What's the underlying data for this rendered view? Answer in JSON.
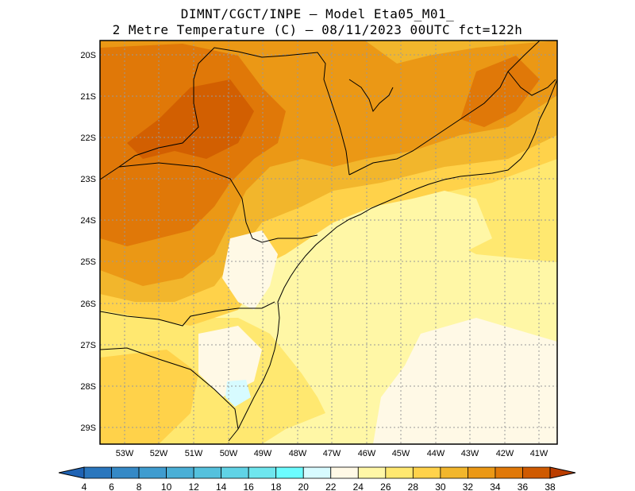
{
  "title_line1": "DIMNT/CGCT/INPE –  Model Eta05_M01_",
  "title_line2": "2 Metre Temperature (C) –  08/11/2023 00UTC fct=122h",
  "lat_labels": [
    "20S",
    "21S",
    "22S",
    "23S",
    "24S",
    "25S",
    "26S",
    "27S",
    "28S",
    "29S"
  ],
  "lon_labels": [
    "53W",
    "52W",
    "51W",
    "50W",
    "49W",
    "48W",
    "47W",
    "46W",
    "45W",
    "44W",
    "43W",
    "42W",
    "41W"
  ],
  "colorbar": {
    "labels": [
      "4",
      "6",
      "8",
      "10",
      "12",
      "14",
      "16",
      "18",
      "20",
      "22",
      "24",
      "26",
      "28",
      "30",
      "32",
      "34",
      "36",
      "38"
    ],
    "colors": [
      "#1f63b4",
      "#2a76bd",
      "#3589c6",
      "#3f9ccf",
      "#4aafd6",
      "#55c1dd",
      "#60d3e6",
      "#6ee6ee",
      "#6cfcff",
      "#d7fbff",
      "#fff9e6",
      "#fff7a6",
      "#ffe870",
      "#ffd24a",
      "#f2b62c",
      "#eb9815",
      "#e07808",
      "#cf5a00",
      "#bb3e00"
    ]
  },
  "map": {
    "colors": {
      "cool": "#fff9e6",
      "t22": "#fff7a6",
      "t24": "#ffe870",
      "t26": "#ffd24a",
      "t28": "#f2b62c",
      "t30": "#eb9815",
      "t32": "#e07808",
      "cold_spot": "#d7fbff"
    }
  }
}
